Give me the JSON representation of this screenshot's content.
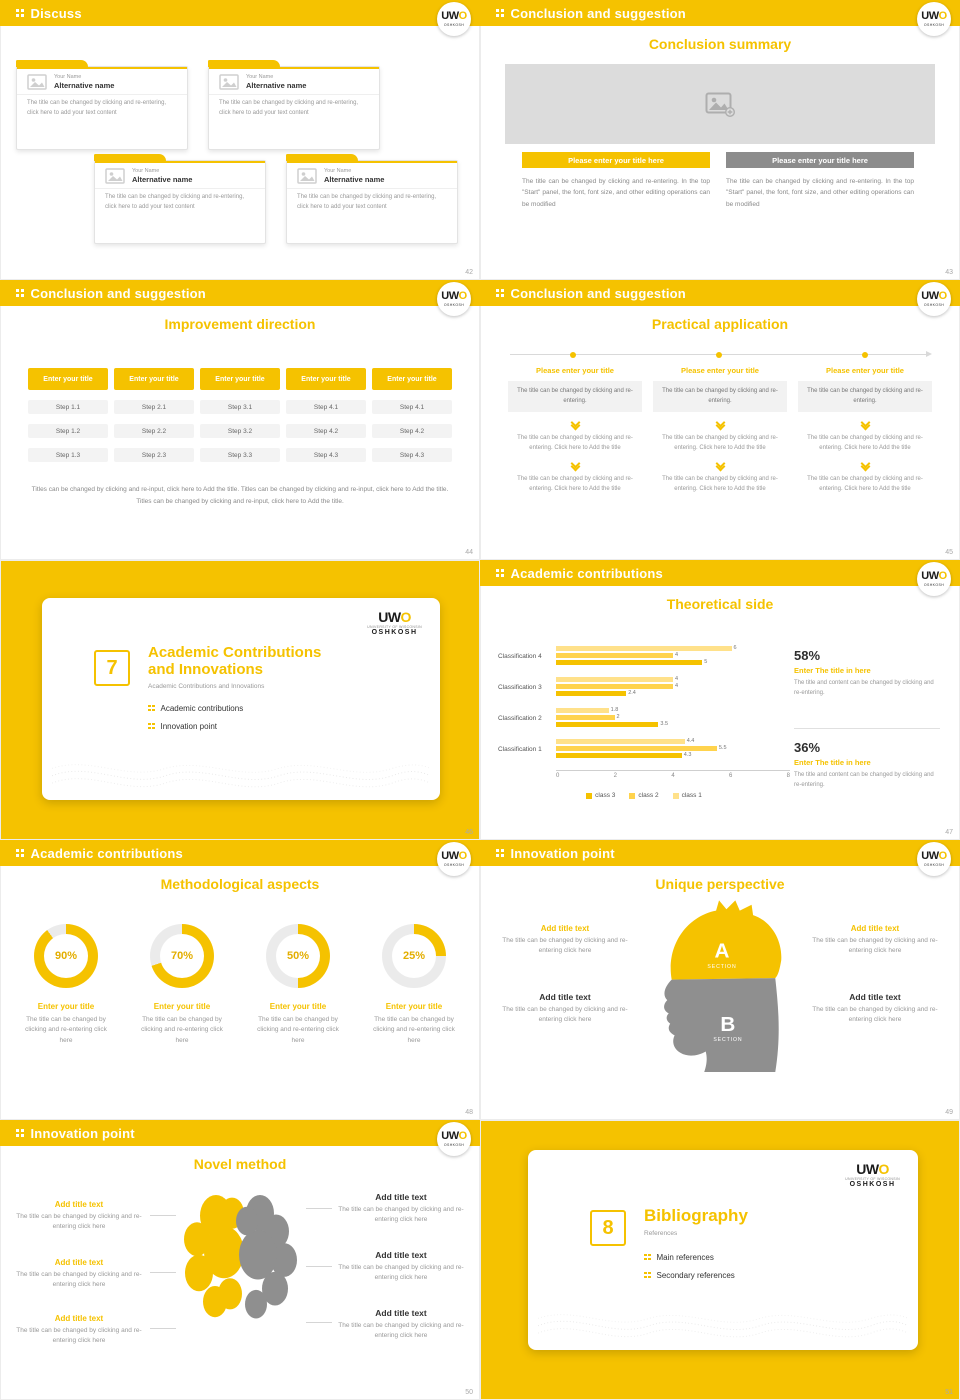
{
  "theme": {
    "yellow": "#F5C200",
    "yellow_light": "#FFD34D",
    "yellow_pale": "#FFE18A",
    "gray_button": "#8C8C8C",
    "silhouette_gray": "#8f8f8f",
    "text_dark": "#333333",
    "text_gray": "#8a8a8a"
  },
  "logo": {
    "uw": "UW",
    "o": "O",
    "oshkosh": "OSHKOSH",
    "university": "UNIVERSITY OF WISCONSIN"
  },
  "chart_data": {
    "type": "bar",
    "orientation": "horizontal",
    "title": "Theoretical side",
    "categories": [
      "Classification 1",
      "Classification 2",
      "Classification 3",
      "Classification 4"
    ],
    "series": [
      {
        "name": "class 1",
        "values": [
          4.4,
          1.8,
          4,
          6
        ]
      },
      {
        "name": "class 2",
        "values": [
          5.5,
          2,
          4,
          4
        ]
      },
      {
        "name": "class 3",
        "values": [
          4.3,
          3.5,
          2.4,
          5
        ]
      }
    ],
    "colors": [
      "#FFE18A",
      "#FFD34D",
      "#F5C200"
    ],
    "xlim": [
      0,
      8
    ],
    "xticks": [
      "0",
      "2",
      "4",
      "6",
      "8"
    ],
    "legend": [
      {
        "label": "class 3",
        "color": "#F5C200"
      },
      {
        "label": "class 2",
        "color": "#FFD34D"
      },
      {
        "label": "class 1",
        "color": "#FFE18A"
      }
    ],
    "value_labels": true,
    "grid": false,
    "legend_position": "bottom"
  },
  "slides": {
    "discuss": {
      "header": "Discuss",
      "page": "42",
      "cards": [
        {
          "name": "Your Name",
          "alt": "Alternative name",
          "body": "The title can be changed by clicking and re-entering, click here to add your text content"
        },
        {
          "name": "Your Name",
          "alt": "Alternative name",
          "body": "The title can be changed by clicking and re-entering, click here to add your text content"
        },
        {
          "name": "Your Name",
          "alt": "Alternative name",
          "body": "The title can be changed by clicking and re-entering, click here to add your text content"
        },
        {
          "name": "Your Name",
          "alt": "Alternative name",
          "body": "The title can be changed by clicking and re-entering, click here to add your text content"
        }
      ]
    },
    "summary": {
      "header": "Conclusion and suggestion",
      "page": "43",
      "title": "Conclusion summary",
      "items": [
        {
          "button": "Please enter your title here",
          "body": "The title can be changed by clicking and re-entering. In the top \"Start\" panel, the font, font size, and other editing operations can be modified"
        },
        {
          "button": "Please enter your title here",
          "body": "The title can be changed by clicking and re-entering. In the top \"Start\" panel, the font, font size, and other editing operations can be modified"
        }
      ]
    },
    "improvement": {
      "header": "Conclusion and suggestion",
      "page": "44",
      "title": "Improvement direction",
      "columns": [
        {
          "title": "Enter your title",
          "steps": [
            "Step 1.1",
            "Step 1.2",
            "Step 1.3"
          ]
        },
        {
          "title": "Enter your title",
          "steps": [
            "Step 2.1",
            "Step 2.2",
            "Step 2.3"
          ]
        },
        {
          "title": "Enter your title",
          "steps": [
            "Step 3.1",
            "Step 3.2",
            "Step 3.3"
          ]
        },
        {
          "title": "Enter your title",
          "steps": [
            "Step 4.1",
            "Step 4.2",
            "Step 4.3"
          ]
        },
        {
          "title": "Enter your title",
          "steps": [
            "Step 4.1",
            "Step 4.2",
            "Step 4.3"
          ]
        }
      ],
      "footer": "Titles can be changed by clicking and re-input, click here to Add the title. Titles can be changed by clicking and re-input, click here to Add the title. Titles can be changed by clicking and re-input, click here to Add the title."
    },
    "practical": {
      "header": "Conclusion and suggestion",
      "page": "45",
      "title": "Practical application",
      "columns": [
        {
          "title": "Please enter your title",
          "box": "The title can be changed by clicking and re-entering.",
          "step1": "The title can be changed by clicking and re-entering. Click here to Add the title",
          "step2": "The title can be changed by clicking and re-entering. Click here to Add the title"
        },
        {
          "title": "Please enter your title",
          "box": "The title can be changed by clicking and re-entering.",
          "step1": "The title can be changed by clicking and re-entering. Click here to Add the title",
          "step2": "The title can be changed by clicking and re-entering. Click here to Add the title"
        },
        {
          "title": "Please enter your title",
          "box": "The title can be changed by clicking and re-entering.",
          "step1": "The title can be changed by clicking and re-entering. Click here to Add the title",
          "step2": "The title can be changed by clicking and re-entering. Click here to Add the title"
        }
      ]
    },
    "cover7": {
      "page": "46",
      "number": "7",
      "title_line1": "Academic Contributions",
      "title_line2": "and Innovations",
      "subtitle": "Academic Contributions and Innovations",
      "bullets": [
        "Academic contributions",
        "Innovation point"
      ]
    },
    "theoretical": {
      "header": "Academic contributions",
      "page": "47",
      "title": "Theoretical side",
      "stats": [
        {
          "pct": "58%",
          "title": "Enter The title in here",
          "body": "The title and content can be changed by clicking and re-entering."
        },
        {
          "pct": "36%",
          "title": "Enter The title in here",
          "body": "The title and content can be changed by clicking and re-entering."
        }
      ]
    },
    "methodological": {
      "header": "Academic contributions",
      "page": "48",
      "title": "Methodological aspects",
      "donuts": [
        {
          "pct": 90,
          "label": "90%",
          "title": "Enter your title",
          "body": "The title can be changed by clicking and re-entering click here"
        },
        {
          "pct": 70,
          "label": "70%",
          "title": "Enter your title",
          "body": "The title can be changed by clicking and re-entering click here"
        },
        {
          "pct": 50,
          "label": "50%",
          "title": "Enter your title",
          "body": "The title can be changed by clicking and re-entering click here"
        },
        {
          "pct": 25,
          "label": "25%",
          "title": "Enter your title",
          "body": "The title can be changed by clicking and re-entering click here"
        }
      ]
    },
    "unique": {
      "header": "Innovation point",
      "page": "49",
      "title": "Unique perspective",
      "sections": [
        {
          "letter": "A",
          "label": "SECTION"
        },
        {
          "letter": "B",
          "label": "SECTION"
        }
      ],
      "left": [
        {
          "title": "Add title text",
          "body": "The title can be changed by clicking and re-entering click here"
        },
        {
          "title": "Add title text",
          "body": "The title can be changed by clicking and re-entering click here"
        }
      ],
      "right": [
        {
          "title": "Add title text",
          "body": "The title can be changed by clicking and re-entering click here"
        },
        {
          "title": "Add title text",
          "body": "The title can be changed by clicking and re-entering click here"
        }
      ]
    },
    "novel": {
      "header": "Innovation point",
      "page": "50",
      "title": "Novel method",
      "left": [
        {
          "title": "Add title text",
          "body": "The title can be changed by clicking and re-entering click here"
        },
        {
          "title": "Add title text",
          "body": "The title can be changed by clicking and re-entering click here"
        },
        {
          "title": "Add title text",
          "body": "The title can be changed by clicking and re-entering click here"
        }
      ],
      "right": [
        {
          "title": "Add title text",
          "body": "The title can be changed by clicking and re-entering click here"
        },
        {
          "title": "Add title text",
          "body": "The title can be changed by clicking and re-entering click here"
        },
        {
          "title": "Add title text",
          "body": "The title can be changed by clicking and re-entering click here"
        }
      ]
    },
    "cover8": {
      "page": "51",
      "number": "8",
      "title_line1": "Bibliography",
      "subtitle": "References",
      "bullets": [
        "Main references",
        "Secondary references"
      ]
    }
  }
}
